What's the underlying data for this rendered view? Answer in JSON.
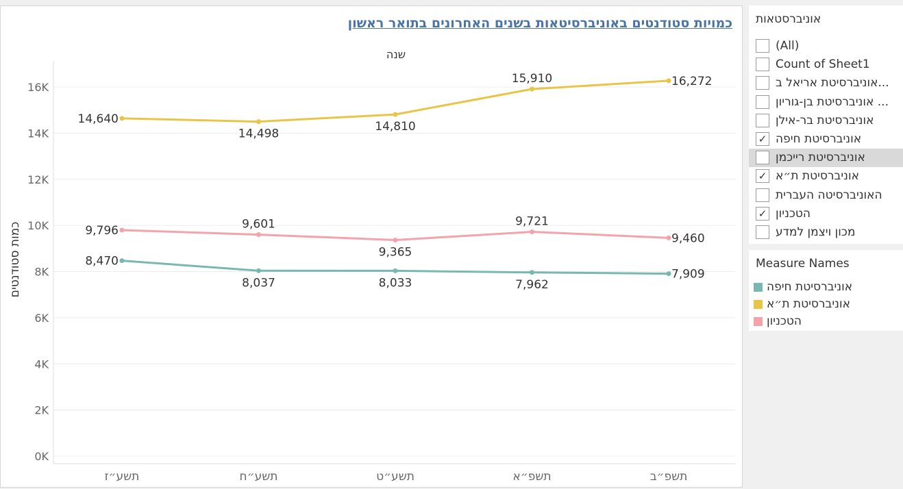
{
  "chart_data": {
    "type": "line",
    "title": "כמויות סטודנטים באוניברסיטאות בשנים האחרונים בתואר ראשון",
    "xlabel": "שנה",
    "ylabel": "כמות סטודנטים",
    "categories": [
      "תשע״ז",
      "תשע״ח",
      "תשע״ט",
      "תשפ״א",
      "תשפ״ב"
    ],
    "ylim": [
      0,
      17000
    ],
    "yticks": [
      0,
      2000,
      4000,
      6000,
      8000,
      10000,
      12000,
      14000,
      16000
    ],
    "ytick_labels": [
      "0K",
      "2K",
      "4K",
      "6K",
      "8K",
      "10K",
      "12K",
      "14K",
      "16K"
    ],
    "grid": true,
    "series": [
      {
        "name": "אוניברסיטת ת״א",
        "color": "#e8c547",
        "values": [
          14640,
          14498,
          14810,
          15910,
          16272
        ],
        "labels": [
          "14,640",
          "14,498",
          "14,810",
          "15,910",
          "16,272"
        ]
      },
      {
        "name": "הטכניון",
        "color": "#f4a3ab",
        "values": [
          9796,
          9601,
          9365,
          9721,
          9460
        ],
        "labels": [
          "9,796",
          "9,601",
          "9,365",
          "9,721",
          "9,460"
        ]
      },
      {
        "name": "אוניברסיטת חיפה",
        "color": "#79b8b1",
        "values": [
          8470,
          8037,
          8033,
          7962,
          7909
        ],
        "labels": [
          "8,470",
          "8,037",
          "8,033",
          "7,962",
          "7,909"
        ]
      }
    ]
  },
  "colors": {
    "title": "#4a74a8",
    "axis_text": "#666666",
    "gridline": "#ececec"
  },
  "filter": {
    "title": "אוניברסטאות",
    "items": [
      {
        "label": "(All)",
        "checked": false,
        "highlight": false
      },
      {
        "label": "Count of Sheet1",
        "checked": false,
        "highlight": false
      },
      {
        "label": "אוניברסיטת אריאל ב...",
        "checked": false,
        "highlight": false
      },
      {
        "label": "אוניברסיטת בן-גוריון ...",
        "checked": false,
        "highlight": false
      },
      {
        "label": "אוניברסיטת בר-אילן",
        "checked": false,
        "highlight": false
      },
      {
        "label": "אוניברסיטת חיפה",
        "checked": true,
        "highlight": false
      },
      {
        "label": "אוניברסיטת רייכמן",
        "checked": false,
        "highlight": true
      },
      {
        "label": "אוניברסיטת ת״א",
        "checked": true,
        "highlight": false
      },
      {
        "label": "האוניברסיטה העברית",
        "checked": false,
        "highlight": false
      },
      {
        "label": "הטכניון",
        "checked": true,
        "highlight": false
      },
      {
        "label": "מכון ויצמן למדע",
        "checked": false,
        "highlight": false
      }
    ],
    "check_glyph": "✓"
  },
  "legend": {
    "title": "Measure Names",
    "items": [
      {
        "label": "אוניברסיטת חיפה",
        "color": "#79b8b1"
      },
      {
        "label": "אוניברסיטת ת״א",
        "color": "#e8c547"
      },
      {
        "label": "הטכניון",
        "color": "#f4a3ab"
      }
    ]
  }
}
